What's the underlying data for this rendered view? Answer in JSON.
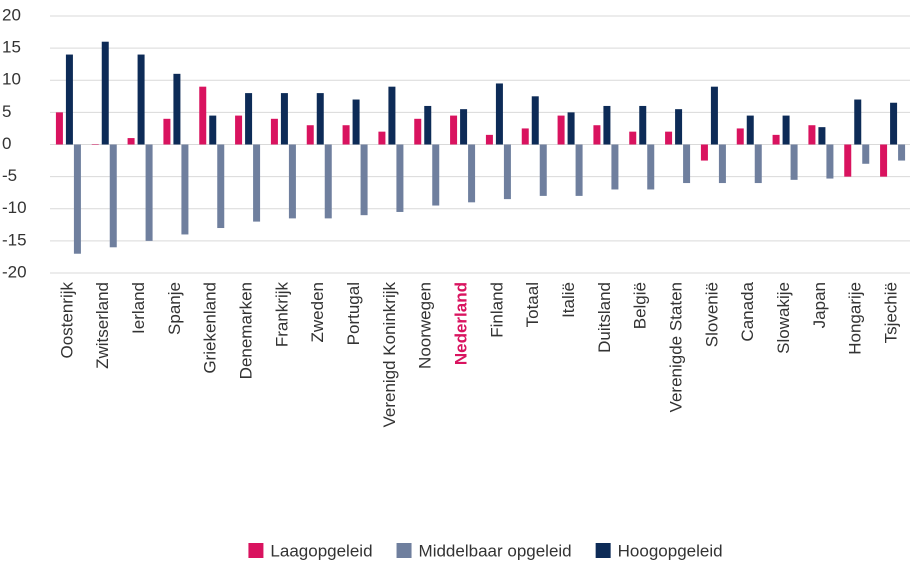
{
  "chart_data": {
    "type": "bar",
    "categories": [
      "Oostenrijk",
      "Zwitserland",
      "Ierland",
      "Spanje",
      "Griekenland",
      "Denemarken",
      "Frankrijk",
      "Zweden",
      "Portugal",
      "Verenigd Koninkrijk",
      "Noorwegen",
      "Nederland",
      "Finland",
      "Totaal",
      "Italië",
      "Duitsland",
      "België",
      "Verenigde Staten",
      "Slovenië",
      "Canada",
      "Slowakije",
      "Japan",
      "Hongarije",
      "Tsjechië"
    ],
    "series": [
      {
        "name": "Laagopgeleid",
        "color": "#d9135f",
        "values": [
          5,
          0,
          1,
          4,
          9,
          4.5,
          4,
          3,
          3,
          2,
          4,
          4.5,
          1.5,
          2.5,
          4.5,
          3,
          2,
          2,
          -2.5,
          2.5,
          1.5,
          3,
          -5,
          -5
        ]
      },
      {
        "name": "Middelbaar opgeleid",
        "color": "#6f7f9e",
        "values": [
          -17,
          -16,
          -15,
          -14,
          -13,
          -12,
          -11.5,
          -11.5,
          -11,
          -10.5,
          -9.5,
          -9,
          -8.5,
          -8,
          -8,
          -7,
          -7,
          -6,
          -6,
          -6,
          -5.5,
          -5.3,
          -3,
          -2.5
        ]
      },
      {
        "name": "Hoogopgeleid",
        "color": "#0d2b57",
        "values": [
          14,
          16,
          14,
          11,
          4.5,
          8,
          8,
          8,
          7,
          9,
          6,
          5.5,
          9.5,
          7.5,
          5,
          6,
          6,
          5.5,
          9,
          4.5,
          4.5,
          2.7,
          7,
          6.5
        ]
      }
    ],
    "ylim": [
      -20,
      20
    ],
    "yticks": [
      -20,
      -15,
      -10,
      -5,
      0,
      5,
      10,
      15,
      20
    ],
    "grid": true,
    "highlight_index": 11,
    "highlight_color": "#d9135f",
    "legend": "bottom"
  }
}
